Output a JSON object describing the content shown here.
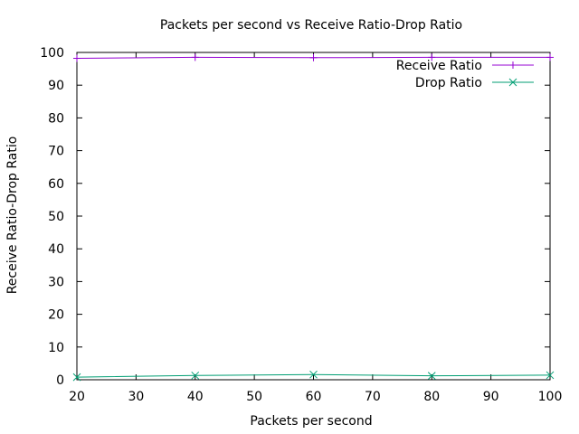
{
  "chart_data": {
    "type": "line",
    "title": "Packets per second vs Receive Ratio-Drop Ratio",
    "xlabel": "Packets per second",
    "ylabel": "Receive Ratio-Drop Ratio",
    "xlim": [
      20,
      100
    ],
    "ylim": [
      0,
      100
    ],
    "xticks": [
      20,
      30,
      40,
      50,
      60,
      70,
      80,
      90,
      100
    ],
    "yticks": [
      0,
      10,
      20,
      30,
      40,
      50,
      60,
      70,
      80,
      90,
      100
    ],
    "grid": false,
    "legend_position": "top-right",
    "series": [
      {
        "name": "Receive Ratio",
        "color": "#9400d3",
        "marker": "plus",
        "x": [
          20,
          40,
          60,
          80,
          100
        ],
        "y": [
          98.2,
          98.5,
          98.4,
          98.5,
          98.5
        ]
      },
      {
        "name": "Drop Ratio",
        "color": "#009e73",
        "marker": "cross",
        "x": [
          20,
          40,
          60,
          80,
          100
        ],
        "y": [
          0.8,
          1.3,
          1.6,
          1.2,
          1.4
        ]
      }
    ]
  }
}
